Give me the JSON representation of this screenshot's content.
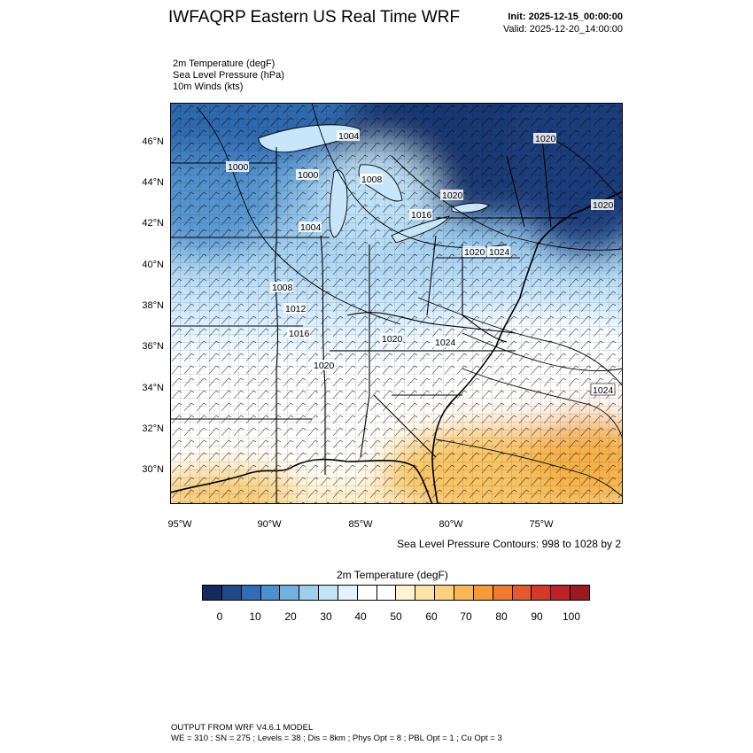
{
  "header": {
    "title": "IWFAQRP Eastern US Real Time WRF",
    "init": "Init: 2025-12-15_00:00:00",
    "valid": "Valid: 2025-12-20_14:00:00"
  },
  "fields": [
    "2m Temperature   (degF)",
    "Sea Level Pressure   (hPa)",
    "10m Winds   (kts)"
  ],
  "map": {
    "lat_ticks": [
      "46°N",
      "44°N",
      "42°N",
      "40°N",
      "38°N",
      "36°N",
      "34°N",
      "32°N",
      "30°N"
    ],
    "lon_ticks": [
      "95°W",
      "90°W",
      "85°W",
      "80°W",
      "75°W"
    ],
    "isobar_labels": [
      "1004",
      "1020",
      "1000",
      "1000",
      "1008",
      "1020",
      "1016",
      "1004",
      "1020",
      "1020",
      "1024",
      "1008",
      "1012",
      "1016",
      "1020",
      "1024",
      "1020",
      "1024"
    ],
    "slp_note": "Sea Level Pressure Contours: 998 to 1028 by 2"
  },
  "colorbar": {
    "title": "2m Temperature  (degF)",
    "colors": [
      "#14295e",
      "#1f4a8c",
      "#2f6db5",
      "#4e90cd",
      "#74b1e0",
      "#9dcdef",
      "#c3e3f7",
      "#e3f2fb",
      "#ffffff",
      "#ffffff",
      "#fff3d1",
      "#fde4a6",
      "#fcd07e",
      "#fbb552",
      "#f69a38",
      "#f07b2e",
      "#e55a2c",
      "#d33a2a",
      "#bd2228",
      "#9d1820"
    ],
    "ticks": [
      "0",
      "10",
      "20",
      "30",
      "40",
      "50",
      "60",
      "70",
      "80",
      "90",
      "100"
    ]
  },
  "footer": {
    "line1": "OUTPUT FROM WRF V4.6.1 MODEL",
    "line2": "WE = 310 ; SN = 275 ; Levels = 38 ; Dis = 8km ; Phys Opt = 8 ; PBL Opt = 1 ; Cu Opt = 3"
  }
}
